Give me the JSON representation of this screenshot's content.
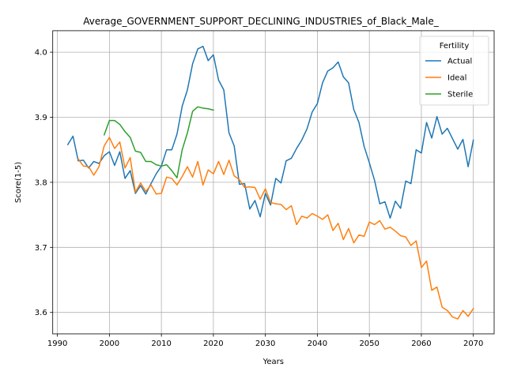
{
  "chart_data": {
    "type": "line",
    "title": "Average_GOVERNMENT_SUPPORT_DECLINING_INDUSTRIES_of_Black_Male_",
    "xlabel": "Years",
    "ylabel": "Score(1-5)",
    "xlim": [
      1989.1,
      2074.0
    ],
    "ylim": [
      3.567,
      4.033
    ],
    "xticks": [
      1990,
      2000,
      2010,
      2020,
      2030,
      2040,
      2050,
      2060,
      2070
    ],
    "xtick_labels": [
      "1990",
      "2000",
      "2010",
      "2020",
      "2030",
      "2040",
      "2050",
      "2060",
      "2070"
    ],
    "yticks": [
      3.6,
      3.7,
      3.8,
      3.9,
      4.0
    ],
    "ytick_labels": [
      "3.6",
      "3.7",
      "3.8",
      "3.9",
      "4.0"
    ],
    "grid": true,
    "legend": {
      "title": "Fertility",
      "placement": "upper right"
    },
    "series": [
      {
        "name": "Actual",
        "color": "#1f77b4",
        "x": [
          1992,
          1993,
          1994,
          1995,
          1996,
          1997,
          1998,
          1999,
          2000,
          2001,
          2002,
          2003,
          2004,
          2005,
          2006,
          2007,
          2008,
          2009,
          2010,
          2011,
          2012,
          2013,
          2014,
          2015,
          2016,
          2017,
          2018,
          2019,
          2020,
          2021,
          2022,
          2023,
          2024,
          2025,
          2026,
          2027,
          2028,
          2029,
          2030,
          2031,
          2032,
          2033,
          2034,
          2035,
          2036,
          2037,
          2038,
          2039,
          2040,
          2041,
          2042,
          2043,
          2044,
          2045,
          2046,
          2047,
          2048,
          2049,
          2050,
          2051,
          2052,
          2053,
          2054,
          2055,
          2056,
          2057,
          2058,
          2059,
          2060,
          2061,
          2062,
          2063,
          2064,
          2065,
          2066,
          2067,
          2068,
          2069,
          2070
        ],
        "values": [
          3.858,
          3.871,
          3.833,
          3.834,
          3.822,
          3.832,
          3.829,
          3.841,
          3.847,
          3.826,
          3.847,
          3.806,
          3.818,
          3.783,
          3.795,
          3.782,
          3.798,
          3.813,
          3.825,
          3.85,
          3.85,
          3.874,
          3.917,
          3.942,
          3.982,
          4.005,
          4.009,
          3.987,
          3.996,
          3.957,
          3.942,
          3.876,
          3.856,
          3.797,
          3.798,
          3.759,
          3.772,
          3.747,
          3.783,
          3.765,
          3.806,
          3.799,
          3.833,
          3.837,
          3.852,
          3.865,
          3.882,
          3.908,
          3.921,
          3.953,
          3.971,
          3.976,
          3.985,
          3.962,
          3.953,
          3.912,
          3.892,
          3.855,
          3.83,
          3.803,
          3.767,
          3.77,
          3.745,
          3.771,
          3.76,
          3.802,
          3.798,
          3.85,
          3.845,
          3.892,
          3.868,
          3.901,
          3.874,
          3.883,
          3.867,
          3.851,
          3.866,
          3.824,
          3.865
        ]
      },
      {
        "name": "Ideal",
        "color": "#ff7f0e",
        "x": [
          1994,
          1995,
          1996,
          1997,
          1998,
          1999,
          2000,
          2001,
          2002,
          2003,
          2004,
          2005,
          2006,
          2007,
          2008,
          2009,
          2010,
          2011,
          2012,
          2013,
          2014,
          2015,
          2016,
          2017,
          2018,
          2019,
          2020,
          2021,
          2022,
          2023,
          2024,
          2025,
          2026,
          2027,
          2028,
          2029,
          2030,
          2031,
          2032,
          2033,
          2034,
          2035,
          2036,
          2037,
          2038,
          2039,
          2040,
          2041,
          2042,
          2043,
          2044,
          2045,
          2046,
          2047,
          2048,
          2049,
          2050,
          2051,
          2052,
          2053,
          2054,
          2055,
          2056,
          2057,
          2058,
          2059,
          2060,
          2061,
          2062,
          2063,
          2064,
          2065,
          2066,
          2067,
          2068,
          2069,
          2070
        ],
        "values": [
          3.836,
          3.825,
          3.824,
          3.811,
          3.824,
          3.856,
          3.869,
          3.852,
          3.862,
          3.822,
          3.838,
          3.785,
          3.799,
          3.786,
          3.796,
          3.782,
          3.783,
          3.808,
          3.806,
          3.796,
          3.809,
          3.824,
          3.808,
          3.832,
          3.796,
          3.819,
          3.813,
          3.832,
          3.812,
          3.834,
          3.81,
          3.804,
          3.792,
          3.793,
          3.792,
          3.774,
          3.79,
          3.769,
          3.767,
          3.766,
          3.758,
          3.764,
          3.735,
          3.748,
          3.745,
          3.752,
          3.748,
          3.743,
          3.75,
          3.726,
          3.737,
          3.712,
          3.729,
          3.707,
          3.719,
          3.717,
          3.739,
          3.735,
          3.741,
          3.728,
          3.731,
          3.725,
          3.718,
          3.716,
          3.703,
          3.71,
          3.669,
          3.679,
          3.634,
          3.639,
          3.608,
          3.603,
          3.593,
          3.59,
          3.603,
          3.594,
          3.606
        ]
      },
      {
        "name": "Sterile",
        "color": "#2ca02c",
        "x": [
          1999,
          2000,
          2001,
          2002,
          2003,
          2004,
          2005,
          2006,
          2007,
          2008,
          2009,
          2010,
          2011,
          2012,
          2013,
          2014,
          2015,
          2016,
          2017,
          2018,
          2019,
          2020
        ],
        "values": [
          3.873,
          3.895,
          3.895,
          3.889,
          3.878,
          3.869,
          3.848,
          3.846,
          3.832,
          3.832,
          3.827,
          3.825,
          3.827,
          3.818,
          3.807,
          3.85,
          3.876,
          3.909,
          3.916,
          3.914,
          3.913,
          3.911
        ]
      }
    ]
  }
}
